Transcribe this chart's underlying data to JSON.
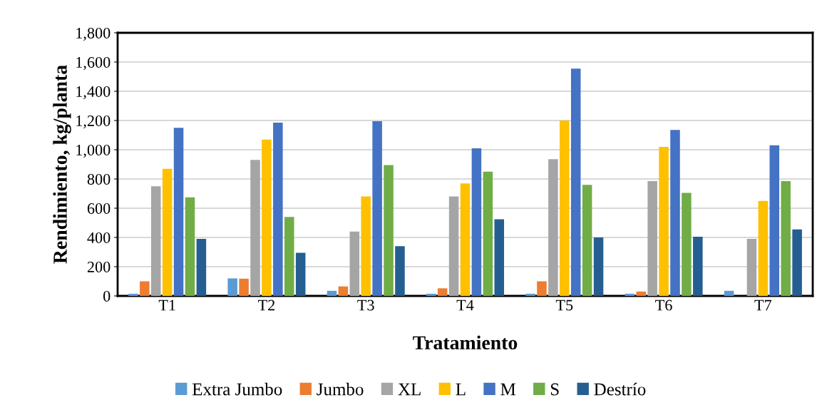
{
  "chart_data": {
    "type": "bar",
    "xlabel": "Tratamiento",
    "ylabel": "Rendimiento, kg/planta",
    "categories": [
      "T1",
      "T2",
      "T3",
      "T4",
      "T5",
      "T6",
      "T7"
    ],
    "series": [
      {
        "name": "Extra Jumbo",
        "color": "#5b9bd5",
        "values": [
          15,
          120,
          35,
          15,
          15,
          15,
          35
        ]
      },
      {
        "name": "Jumbo",
        "color": "#ed7d31",
        "values": [
          100,
          118,
          65,
          52,
          100,
          30,
          0
        ]
      },
      {
        "name": "XL",
        "color": "#a5a5a5",
        "values": [
          750,
          930,
          440,
          680,
          935,
          785,
          390
        ]
      },
      {
        "name": "L",
        "color": "#ffc000",
        "values": [
          870,
          1070,
          680,
          770,
          1200,
          1020,
          650
        ]
      },
      {
        "name": "M",
        "color": "#4472c4",
        "values": [
          1150,
          1185,
          1195,
          1010,
          1555,
          1135,
          1030
        ]
      },
      {
        "name": "S",
        "color": "#70ad47",
        "values": [
          675,
          540,
          895,
          850,
          760,
          705,
          785
        ]
      },
      {
        "name": "Destrío",
        "color": "#255e91",
        "values": [
          390,
          295,
          340,
          525,
          400,
          405,
          455
        ]
      }
    ],
    "ylim": [
      0,
      1800
    ],
    "yticks": [
      {
        "value": 0,
        "label": "0"
      },
      {
        "value": 200,
        "label": "200"
      },
      {
        "value": 400,
        "label": "400"
      },
      {
        "value": 600,
        "label": "600"
      },
      {
        "value": 800,
        "label": "800"
      },
      {
        "value": 1000,
        "label": "1,000"
      },
      {
        "value": 1200,
        "label": "1,200"
      },
      {
        "value": 1400,
        "label": "1,400"
      },
      {
        "value": 1600,
        "label": "1,600"
      },
      {
        "value": 1800,
        "label": "1,800"
      }
    ],
    "grid": "y",
    "legend": "bottom"
  }
}
